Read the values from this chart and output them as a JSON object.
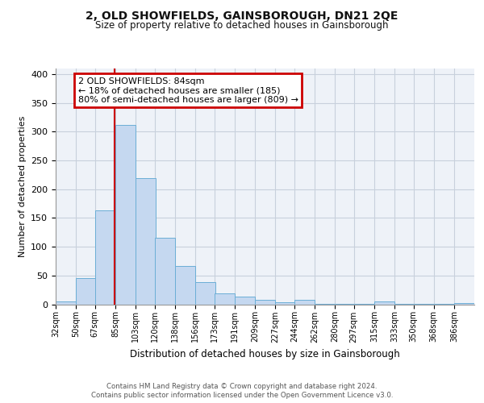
{
  "title": "2, OLD SHOWFIELDS, GAINSBOROUGH, DN21 2QE",
  "subtitle": "Size of property relative to detached houses in Gainsborough",
  "xlabel": "Distribution of detached houses by size in Gainsborough",
  "ylabel": "Number of detached properties",
  "bin_labels": [
    "32sqm",
    "50sqm",
    "67sqm",
    "85sqm",
    "103sqm",
    "120sqm",
    "138sqm",
    "156sqm",
    "173sqm",
    "191sqm",
    "209sqm",
    "227sqm",
    "244sqm",
    "262sqm",
    "280sqm",
    "297sqm",
    "315sqm",
    "333sqm",
    "350sqm",
    "368sqm",
    "386sqm"
  ],
  "bin_edges": [
    32,
    50,
    67,
    85,
    103,
    120,
    138,
    156,
    173,
    191,
    209,
    227,
    244,
    262,
    280,
    297,
    315,
    333,
    350,
    368,
    386
  ],
  "bar_heights": [
    5,
    46,
    164,
    312,
    219,
    116,
    67,
    38,
    19,
    13,
    8,
    4,
    8,
    1,
    1,
    1,
    5,
    1,
    1,
    1,
    2
  ],
  "bar_color": "#c5d8f0",
  "bar_edge_color": "#6baed6",
  "property_line_x": 84,
  "property_line_color": "#cc0000",
  "annotation_line1": "2 OLD SHOWFIELDS: 84sqm",
  "annotation_line2": "← 18% of detached houses are smaller (185)",
  "annotation_line3": "80% of semi-detached houses are larger (809) →",
  "annotation_box_color": "#cc0000",
  "ylim": [
    0,
    410
  ],
  "yticks": [
    0,
    50,
    100,
    150,
    200,
    250,
    300,
    350,
    400
  ],
  "grid_color": "#c8d0dc",
  "background_color": "#eef2f8",
  "footer_line1": "Contains HM Land Registry data © Crown copyright and database right 2024.",
  "footer_line2": "Contains public sector information licensed under the Open Government Licence v3.0."
}
